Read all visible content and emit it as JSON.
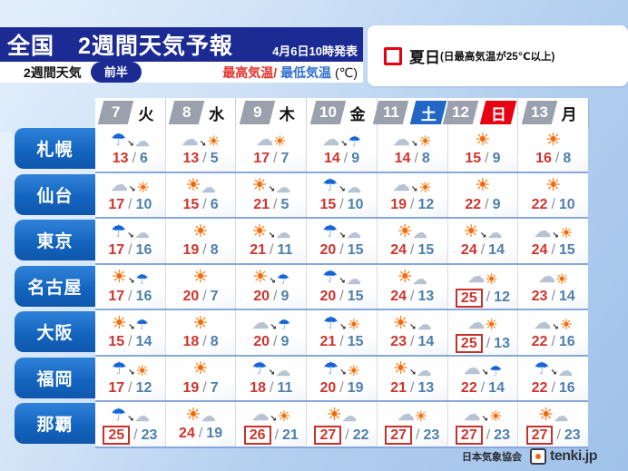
{
  "header": {
    "title": "全国　2週間天気予報",
    "issued": "4月6日10時発表",
    "sub_label": "2週間天気",
    "badge": "前半",
    "legend_max": "最高気温",
    "legend_slash": "/",
    "legend_min": "最低気温",
    "legend_unit": "(℃)",
    "natsubi_label": "夏日",
    "natsubi_note": "(日最高気温が25℃以上)"
  },
  "colors": {
    "navy": "#1b2b93",
    "saturday_blue": "#2267c6",
    "sunday_red": "#e60012",
    "max_temp_red": "#d0342c",
    "min_temp_blue": "#4d7fae",
    "natsubi_box_red": "#c5322b",
    "city_label_blue": "#1465bf"
  },
  "icon_glyphs": {
    "sun": "☀",
    "cloud": "☁",
    "umbrella": "☂",
    "arrow": "↘"
  },
  "table": {
    "days": [
      {
        "date": "7",
        "dow": "火",
        "type": "weekday"
      },
      {
        "date": "8",
        "dow": "水",
        "type": "weekday"
      },
      {
        "date": "9",
        "dow": "木",
        "type": "weekday"
      },
      {
        "date": "10",
        "dow": "金",
        "type": "weekday"
      },
      {
        "date": "11",
        "dow": "土",
        "type": "saturday"
      },
      {
        "date": "12",
        "dow": "日",
        "type": "sunday"
      },
      {
        "date": "13",
        "dow": "月",
        "type": "weekday"
      }
    ],
    "rows": [
      {
        "city": "札幌",
        "cells": [
          {
            "icon": "rain-then-cloudy",
            "max": 13,
            "min": 6,
            "natsubi": false
          },
          {
            "icon": "cloudy-then-sunny",
            "max": 13,
            "min": 5,
            "natsubi": false
          },
          {
            "icon": "cloudy-sunny",
            "max": 17,
            "min": 7,
            "natsubi": false
          },
          {
            "icon": "cloudy-then-rain",
            "max": 14,
            "min": 9,
            "natsubi": false
          },
          {
            "icon": "cloudy-then-sunny",
            "max": 14,
            "min": 8,
            "natsubi": false
          },
          {
            "icon": "sunny",
            "max": 15,
            "min": 9,
            "natsubi": false
          },
          {
            "icon": "sunny",
            "max": 16,
            "min": 8,
            "natsubi": false
          }
        ]
      },
      {
        "city": "仙台",
        "cells": [
          {
            "icon": "cloudy-then-sunny",
            "max": 17,
            "min": 10,
            "natsubi": false
          },
          {
            "icon": "sunny-cloudy",
            "max": 15,
            "min": 6,
            "natsubi": false
          },
          {
            "icon": "sunny-then-cloudy",
            "max": 21,
            "min": 5,
            "natsubi": false
          },
          {
            "icon": "rain-then-cloudy",
            "max": 15,
            "min": 10,
            "natsubi": false
          },
          {
            "icon": "cloudy-then-sunny",
            "max": 19,
            "min": 12,
            "natsubi": false
          },
          {
            "icon": "sunny",
            "max": 22,
            "min": 9,
            "natsubi": false
          },
          {
            "icon": "sunny",
            "max": 22,
            "min": 10,
            "natsubi": false
          }
        ]
      },
      {
        "city": "東京",
        "cells": [
          {
            "icon": "rain-then-cloudy",
            "max": 17,
            "min": 16,
            "natsubi": false
          },
          {
            "icon": "sunny",
            "max": 19,
            "min": 8,
            "natsubi": false
          },
          {
            "icon": "sunny-then-cloudy",
            "max": 21,
            "min": 11,
            "natsubi": false
          },
          {
            "icon": "rain-then-cloudy",
            "max": 20,
            "min": 15,
            "natsubi": false
          },
          {
            "icon": "sunny-cloudy",
            "max": 24,
            "min": 15,
            "natsubi": false
          },
          {
            "icon": "sunny-then-cloudy",
            "max": 24,
            "min": 14,
            "natsubi": false
          },
          {
            "icon": "cloudy-then-sunny",
            "max": 24,
            "min": 15,
            "natsubi": false
          }
        ]
      },
      {
        "city": "名古屋",
        "cells": [
          {
            "icon": "sunny-then-rain",
            "max": 17,
            "min": 16,
            "natsubi": false
          },
          {
            "icon": "sunny",
            "max": 20,
            "min": 7,
            "natsubi": false
          },
          {
            "icon": "sunny-then-rain",
            "max": 20,
            "min": 9,
            "natsubi": false
          },
          {
            "icon": "rain-then-cloudy",
            "max": 20,
            "min": 15,
            "natsubi": false
          },
          {
            "icon": "sunny-cloudy",
            "max": 24,
            "min": 13,
            "natsubi": false
          },
          {
            "icon": "cloudy-sunny",
            "max": 25,
            "min": 12,
            "natsubi": true
          },
          {
            "icon": "cloudy-sunny",
            "max": 23,
            "min": 14,
            "natsubi": false
          }
        ]
      },
      {
        "city": "大阪",
        "cells": [
          {
            "icon": "sunny-then-rain",
            "max": 15,
            "min": 14,
            "natsubi": false
          },
          {
            "icon": "sunny",
            "max": 18,
            "min": 8,
            "natsubi": false
          },
          {
            "icon": "cloudy-then-rain",
            "max": 20,
            "min": 9,
            "natsubi": false
          },
          {
            "icon": "rain-then-sunny",
            "max": 21,
            "min": 15,
            "natsubi": false
          },
          {
            "icon": "sunny-then-cloudy",
            "max": 23,
            "min": 14,
            "natsubi": false
          },
          {
            "icon": "cloudy-sunny",
            "max": 25,
            "min": 13,
            "natsubi": true
          },
          {
            "icon": "cloudy-then-sunny",
            "max": 22,
            "min": 16,
            "natsubi": false
          }
        ]
      },
      {
        "city": "福岡",
        "cells": [
          {
            "icon": "rain-then-sunny",
            "max": 17,
            "min": 12,
            "natsubi": false
          },
          {
            "icon": "sunny",
            "max": 19,
            "min": 7,
            "natsubi": false
          },
          {
            "icon": "rain-then-cloudy",
            "max": 18,
            "min": 11,
            "natsubi": false
          },
          {
            "icon": "rain-then-sunny",
            "max": 20,
            "min": 19,
            "natsubi": false
          },
          {
            "icon": "sunny-then-cloudy",
            "max": 21,
            "min": 13,
            "natsubi": false
          },
          {
            "icon": "cloudy-then-rain",
            "max": 22,
            "min": 14,
            "natsubi": false
          },
          {
            "icon": "rain-then-cloudy",
            "max": 22,
            "min": 16,
            "natsubi": false
          }
        ]
      },
      {
        "city": "那覇",
        "cells": [
          {
            "icon": "rain-then-cloudy",
            "max": 25,
            "min": 23,
            "natsubi": true
          },
          {
            "icon": "sunny-cloudy",
            "max": 24,
            "min": 19,
            "natsubi": false
          },
          {
            "icon": "cloudy-then-sunny",
            "max": 26,
            "min": 21,
            "natsubi": true
          },
          {
            "icon": "sunny-cloudy",
            "max": 27,
            "min": 22,
            "natsubi": true
          },
          {
            "icon": "cloudy-sunny",
            "max": 27,
            "min": 23,
            "natsubi": true
          },
          {
            "icon": "cloudy-then-sunny",
            "max": 27,
            "min": 23,
            "natsubi": true
          },
          {
            "icon": "sunny-cloudy",
            "max": 27,
            "min": 23,
            "natsubi": true
          }
        ]
      }
    ],
    "temp_slash": "/"
  },
  "footer": {
    "credit": "日本気象協会",
    "logo_text": "tenki.jp"
  }
}
